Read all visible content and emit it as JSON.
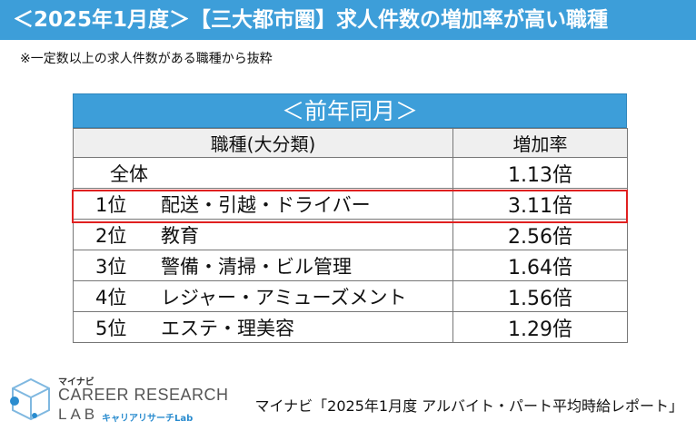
{
  "title": "＜2025年1月度＞【三大都市圏】求人件数の増加率が高い職種",
  "note": "※一定数以上の求人件数がある職種から抜粋",
  "table": {
    "caption": "＜前年同月＞",
    "col_category": "職種(大分類)",
    "col_rate": "増加率",
    "overall": {
      "label": "全体",
      "rate": "1.13倍"
    },
    "rows": [
      {
        "rank": "1位",
        "label": "配送・引越・ドライバー",
        "rate": "3.11倍"
      },
      {
        "rank": "2位",
        "label": "教育",
        "rate": "2.56倍"
      },
      {
        "rank": "3位",
        "label": "警備・清掃・ビル管理",
        "rate": "1.64倍"
      },
      {
        "rank": "4位",
        "label": "レジャー・アミューズメント",
        "rate": "1.56倍"
      },
      {
        "rank": "5位",
        "label": "エステ・理美容",
        "rate": "1.29倍"
      }
    ]
  },
  "logo": {
    "brand_small": "マイナビ",
    "brand_main": "CAREER RESEARCH",
    "brand_lab": "LAB",
    "brand_jp": "キャリアリサーチLab"
  },
  "source": "マイナビ「2025年1月度 アルバイト・パート平均時給レポート」",
  "colors": {
    "accent": "#3d9ed9",
    "highlight": "#e02020",
    "header_bg": "#efefef"
  }
}
